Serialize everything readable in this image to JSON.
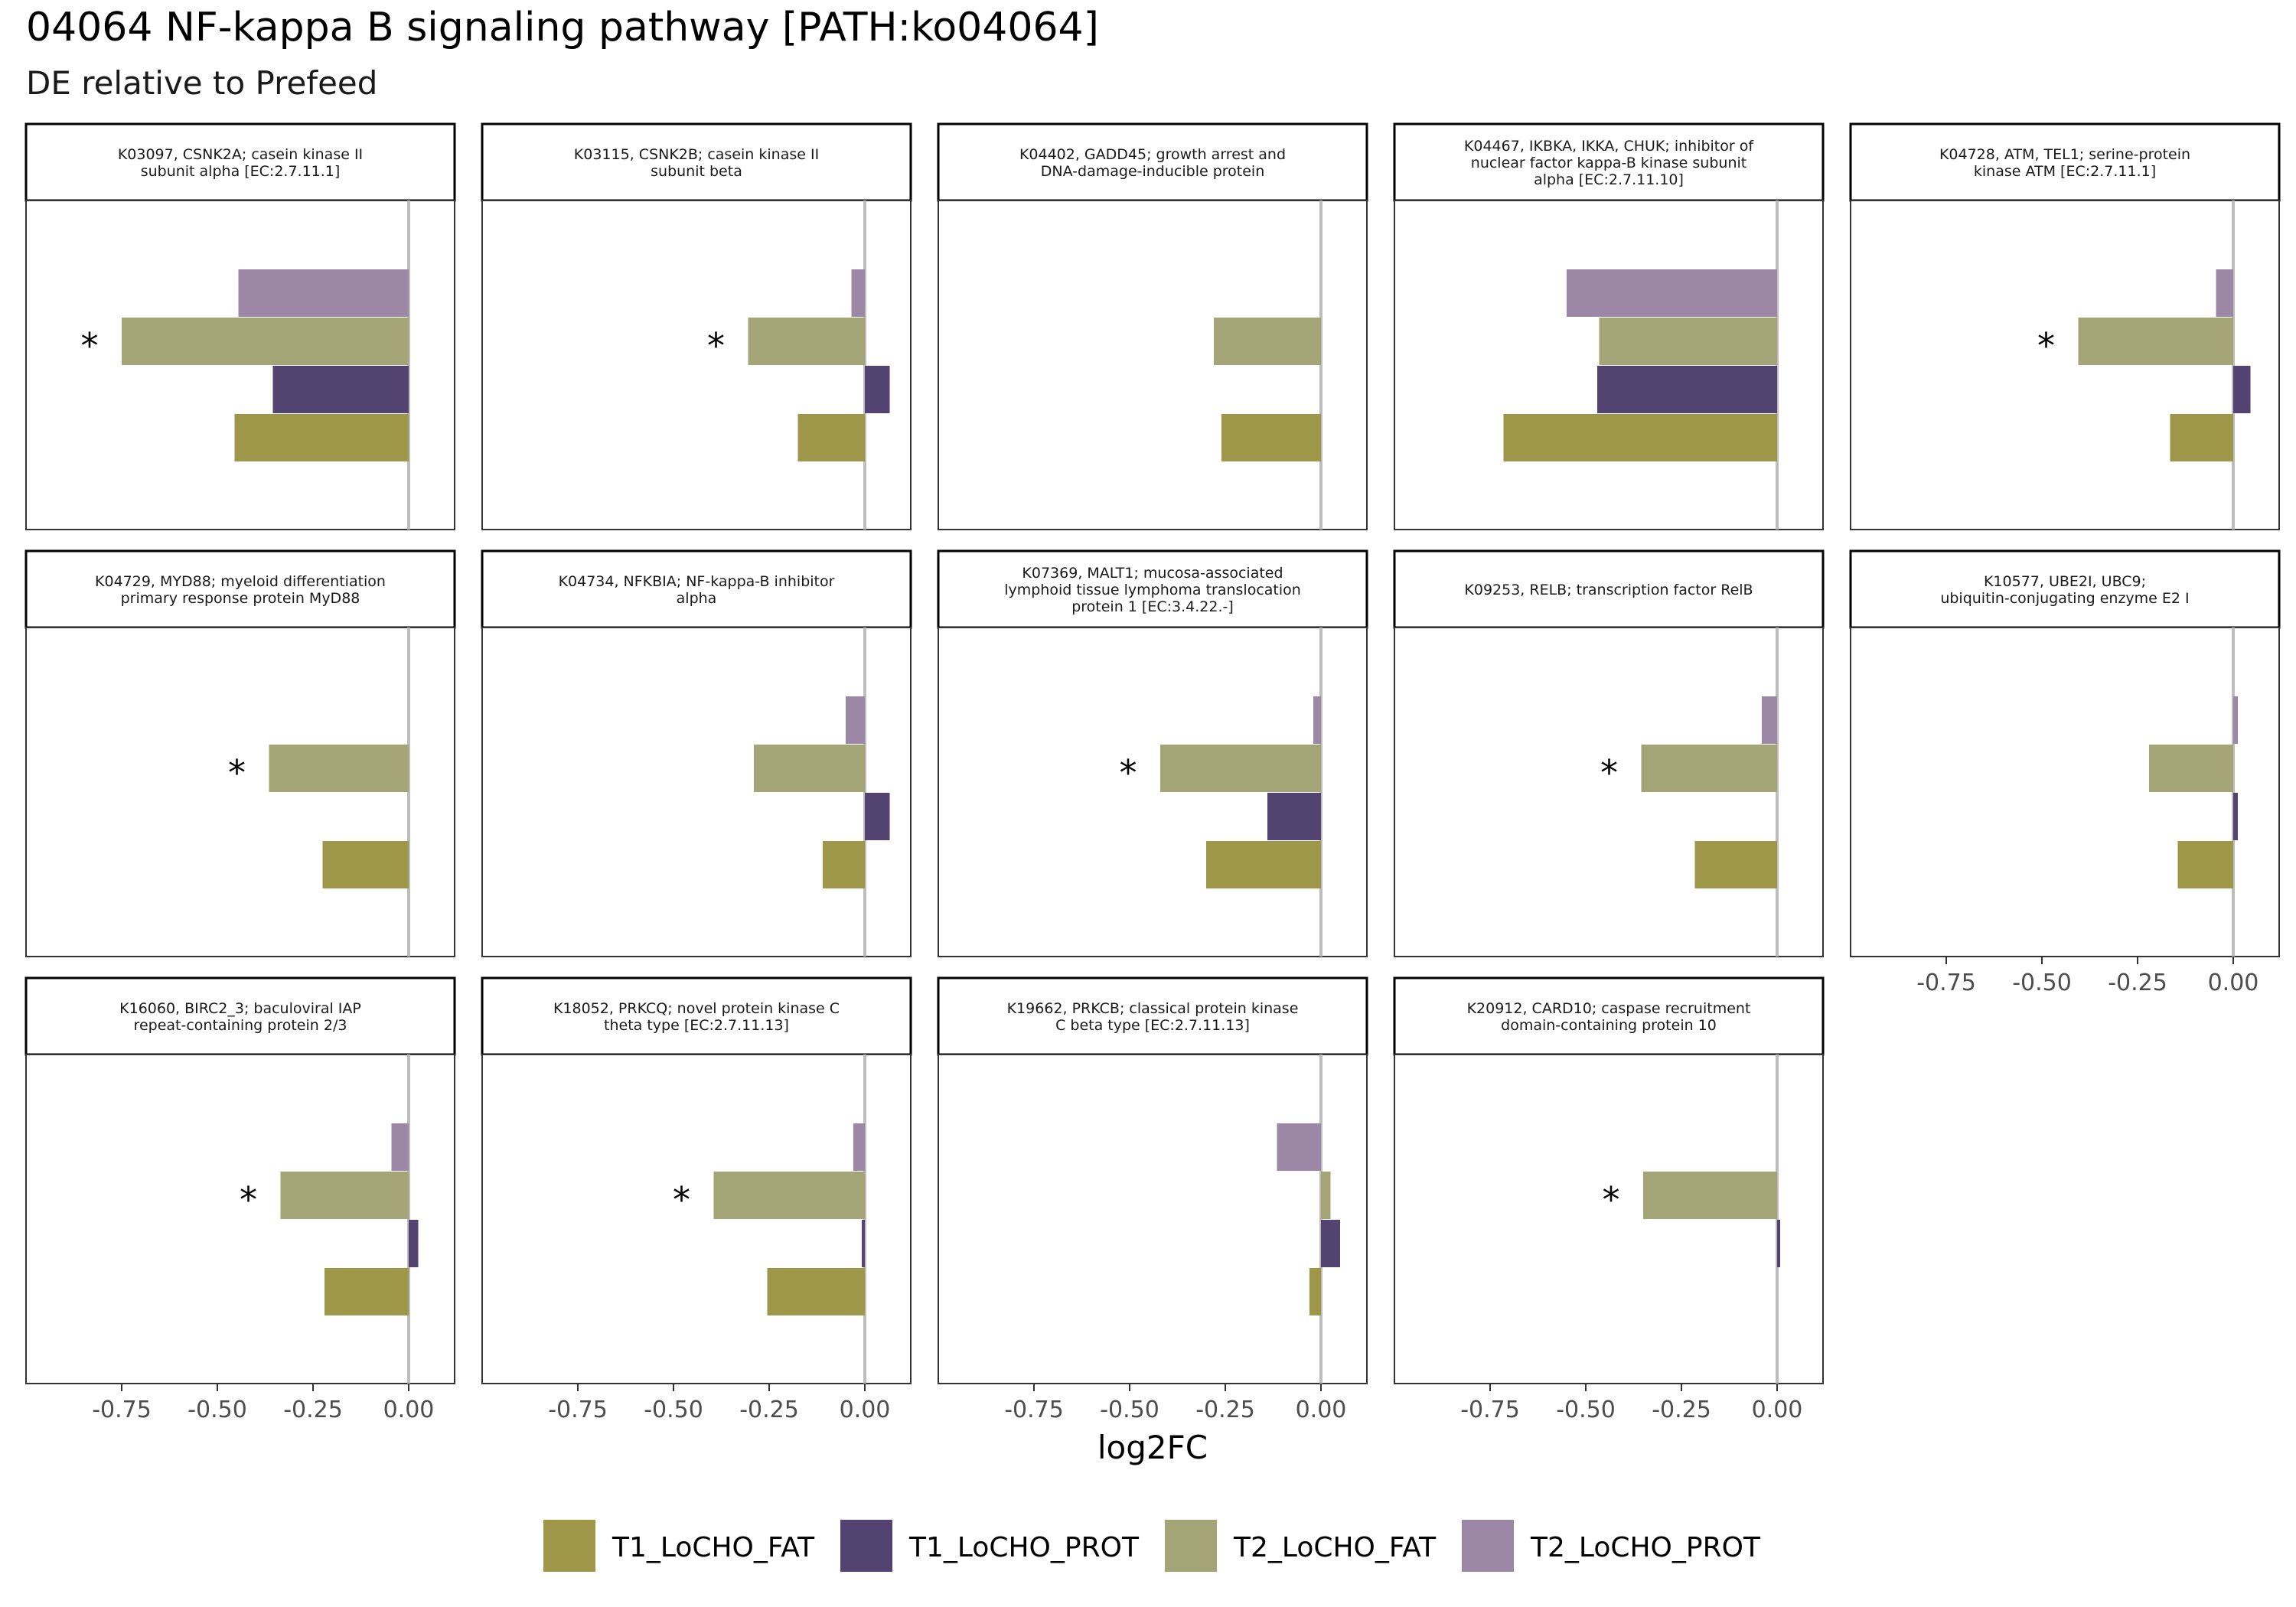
{
  "chart_data": {
    "type": "bar",
    "orientation": "horizontal",
    "title": "04064 NF-kappa B signaling pathway [PATH:ko04064]",
    "subtitle": "DE relative to Prefeed",
    "xlabel": "log2FC",
    "xlim": [
      -1.0,
      0.12
    ],
    "xticks": [
      -0.75,
      -0.5,
      -0.25,
      0.0
    ],
    "xtick_labels": [
      "-0.75",
      "-0.50",
      "-0.25",
      "0.00"
    ],
    "zero_line": true,
    "grid": false,
    "legend_position": "bottom",
    "significance_marker": "*",
    "series": [
      {
        "name": "T1_LoCHO_FAT",
        "color": "#9e9749"
      },
      {
        "name": "T1_LoCHO_PROT",
        "color": "#524371"
      },
      {
        "name": "T2_LoCHO_FAT",
        "color": "#a3a576"
      },
      {
        "name": "T2_LoCHO_PROT",
        "color": "#9c88a6"
      }
    ],
    "panels": [
      {
        "label": "K03097, CSNK2A; casein kinase II\nsubunit alpha [EC:2.7.11.1]",
        "values": {
          "T1_LoCHO_FAT": -0.455,
          "T1_LoCHO_PROT": -0.355,
          "T2_LoCHO_FAT": -0.75,
          "T2_LoCHO_PROT": -0.445
        },
        "significant": [
          "T2_LoCHO_FAT"
        ]
      },
      {
        "label": "K03115, CSNK2B; casein kinase II\nsubunit beta",
        "values": {
          "T1_LoCHO_FAT": -0.175,
          "T1_LoCHO_PROT": 0.065,
          "T2_LoCHO_FAT": -0.305,
          "T2_LoCHO_PROT": -0.035
        },
        "significant": [
          "T2_LoCHO_FAT"
        ]
      },
      {
        "label": "K04402, GADD45; growth arrest and\nDNA-damage-inducible protein",
        "values": {
          "T1_LoCHO_FAT": -0.26,
          "T1_LoCHO_PROT": null,
          "T2_LoCHO_FAT": -0.28,
          "T2_LoCHO_PROT": null
        },
        "significant": []
      },
      {
        "label": "K04467, IKBKA, IKKA, CHUK; inhibitor of\nnuclear factor kappa-B kinase subunit\nalpha [EC:2.7.11.10]",
        "values": {
          "T1_LoCHO_FAT": -0.715,
          "T1_LoCHO_PROT": -0.47,
          "T2_LoCHO_FAT": -0.465,
          "T2_LoCHO_PROT": -0.55
        },
        "significant": []
      },
      {
        "label": "K04728, ATM, TEL1; serine-protein\nkinase ATM [EC:2.7.11.1]",
        "values": {
          "T1_LoCHO_FAT": -0.165,
          "T1_LoCHO_PROT": 0.045,
          "T2_LoCHO_FAT": -0.405,
          "T2_LoCHO_PROT": -0.045
        },
        "significant": [
          "T2_LoCHO_FAT"
        ]
      },
      {
        "label": "K04729, MYD88; myeloid differentiation\nprimary response protein MyD88",
        "values": {
          "T1_LoCHO_FAT": -0.225,
          "T1_LoCHO_PROT": null,
          "T2_LoCHO_FAT": -0.365,
          "T2_LoCHO_PROT": null
        },
        "significant": [
          "T2_LoCHO_FAT"
        ]
      },
      {
        "label": "K04734, NFKBIA; NF-kappa-B inhibitor\nalpha",
        "values": {
          "T1_LoCHO_FAT": -0.11,
          "T1_LoCHO_PROT": 0.065,
          "T2_LoCHO_FAT": -0.29,
          "T2_LoCHO_PROT": -0.05
        },
        "significant": []
      },
      {
        "label": "K07369, MALT1; mucosa-associated\nlymphoid tissue lymphoma translocation\nprotein 1 [EC:3.4.22.-]",
        "values": {
          "T1_LoCHO_FAT": -0.3,
          "T1_LoCHO_PROT": -0.14,
          "T2_LoCHO_FAT": -0.42,
          "T2_LoCHO_PROT": -0.02
        },
        "significant": [
          "T2_LoCHO_FAT"
        ]
      },
      {
        "label": "K09253, RELB; transcription factor RelB",
        "values": {
          "T1_LoCHO_FAT": -0.215,
          "T1_LoCHO_PROT": null,
          "T2_LoCHO_FAT": -0.355,
          "T2_LoCHO_PROT": -0.04
        },
        "significant": [
          "T2_LoCHO_FAT"
        ]
      },
      {
        "label": "K10577, UBE2I, UBC9;\nubiquitin-conjugating enzyme E2 I",
        "values": {
          "T1_LoCHO_FAT": -0.145,
          "T1_LoCHO_PROT": 0.012,
          "T2_LoCHO_FAT": -0.22,
          "T2_LoCHO_PROT": 0.012
        },
        "significant": []
      },
      {
        "label": "K16060, BIRC2_3; baculoviral IAP\nrepeat-containing protein 2/3",
        "values": {
          "T1_LoCHO_FAT": -0.22,
          "T1_LoCHO_PROT": 0.025,
          "T2_LoCHO_FAT": -0.335,
          "T2_LoCHO_PROT": -0.045
        },
        "significant": [
          "T2_LoCHO_FAT"
        ]
      },
      {
        "label": "K18052, PRKCQ; novel protein kinase C\ntheta type [EC:2.7.11.13]",
        "values": {
          "T1_LoCHO_FAT": -0.255,
          "T1_LoCHO_PROT": -0.008,
          "T2_LoCHO_FAT": -0.395,
          "T2_LoCHO_PROT": -0.03
        },
        "significant": [
          "T2_LoCHO_FAT"
        ]
      },
      {
        "label": "K19662, PRKCB; classical protein kinase\nC beta type [EC:2.7.11.13]",
        "values": {
          "T1_LoCHO_FAT": -0.03,
          "T1_LoCHO_PROT": 0.05,
          "T2_LoCHO_FAT": 0.025,
          "T2_LoCHO_PROT": -0.115
        },
        "significant": []
      },
      {
        "label": "K20912, CARD10; caspase recruitment\ndomain-containing protein 10",
        "values": {
          "T1_LoCHO_FAT": null,
          "T1_LoCHO_PROT": 0.008,
          "T2_LoCHO_FAT": -0.35,
          "T2_LoCHO_PROT": null
        },
        "significant": [
          "T2_LoCHO_FAT"
        ]
      }
    ]
  }
}
